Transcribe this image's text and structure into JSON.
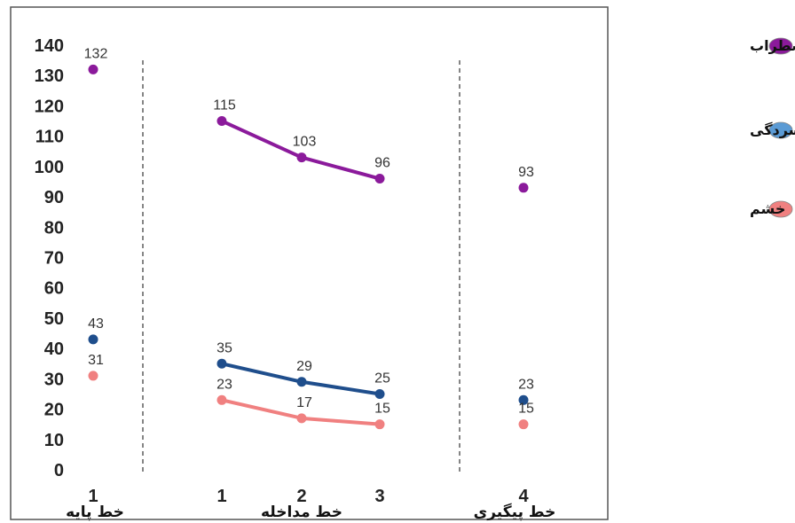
{
  "chart_data": {
    "type": "line",
    "ylim": [
      0,
      140
    ],
    "yticks": [
      0,
      10,
      20,
      30,
      40,
      50,
      60,
      70,
      80,
      90,
      100,
      110,
      120,
      130,
      140
    ],
    "phases": [
      {
        "label": "خط پایه",
        "ticks": [
          "1"
        ]
      },
      {
        "label": "خط مداخله",
        "ticks": [
          "1",
          "2",
          "3"
        ]
      },
      {
        "label": "خط پیگیری",
        "ticks": [
          "4"
        ]
      }
    ],
    "series": [
      {
        "name": "اضطراب",
        "color": "#8B1A9B",
        "points": [
          {
            "phase": 0,
            "x": "1",
            "y": 132
          },
          {
            "phase": 1,
            "x": "1",
            "y": 115
          },
          {
            "phase": 1,
            "x": "2",
            "y": 103
          },
          {
            "phase": 1,
            "x": "3",
            "y": 96
          },
          {
            "phase": 2,
            "x": "4",
            "y": 93
          }
        ]
      },
      {
        "name": "افسردگی",
        "color": "#1F4E8C",
        "legend_color": "#5B9BD5",
        "points": [
          {
            "phase": 0,
            "x": "1",
            "y": 43
          },
          {
            "phase": 1,
            "x": "1",
            "y": 35
          },
          {
            "phase": 1,
            "x": "2",
            "y": 29
          },
          {
            "phase": 1,
            "x": "3",
            "y": 25
          },
          {
            "phase": 2,
            "x": "4",
            "y": 23
          }
        ]
      },
      {
        "name": "خشم",
        "color": "#F08080",
        "points": [
          {
            "phase": 0,
            "x": "1",
            "y": 31
          },
          {
            "phase": 1,
            "x": "1",
            "y": 23
          },
          {
            "phase": 1,
            "x": "2",
            "y": 17
          },
          {
            "phase": 1,
            "x": "3",
            "y": 15
          },
          {
            "phase": 2,
            "x": "4",
            "y": 15
          }
        ]
      }
    ],
    "legend_position": "right"
  }
}
